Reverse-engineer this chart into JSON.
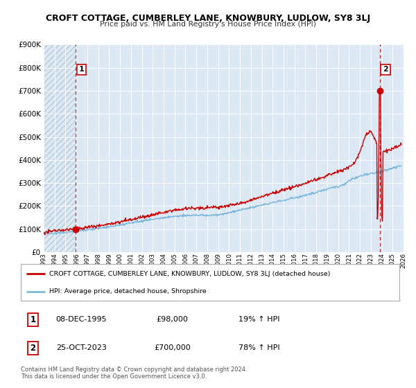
{
  "title": "CROFT COTTAGE, CUMBERLEY LANE, KNOWBURY, LUDLOW, SY8 3LJ",
  "subtitle": "Price paid vs. HM Land Registry's House Price Index (HPI)",
  "bg_color": "#dce9f5",
  "hatch_color": "#c8d8ea",
  "grid_color": "#b8ccd8",
  "xmin": 1993,
  "xmax": 2026,
  "ymin": 0,
  "ymax": 900000,
  "yticks": [
    0,
    100000,
    200000,
    300000,
    400000,
    500000,
    600000,
    700000,
    800000,
    900000
  ],
  "ytick_labels": [
    "£0",
    "£100K",
    "£200K",
    "£300K",
    "£400K",
    "£500K",
    "£600K",
    "£700K",
    "£800K",
    "£900K"
  ],
  "hpi_color": "#6baed6",
  "price_color": "#cc0000",
  "sale1_x": 1995.92,
  "sale1_y": 98000,
  "sale2_x": 2023.81,
  "sale2_y": 700000,
  "legend_entry1": "CROFT COTTAGE, CUMBERLEY LANE, KNOWBURY, LUDLOW, SY8 3LJ (detached house)",
  "legend_entry2": "HPI: Average price, detached house, Shropshire",
  "table_row1_num": "1",
  "table_row1_date": "08-DEC-1995",
  "table_row1_price": "£98,000",
  "table_row1_hpi": "19% ↑ HPI",
  "table_row2_num": "2",
  "table_row2_date": "25-OCT-2023",
  "table_row2_price": "£700,000",
  "table_row2_hpi": "78% ↑ HPI",
  "footer": "Contains HM Land Registry data © Crown copyright and database right 2024.\nThis data is licensed under the Open Government Licence v3.0."
}
